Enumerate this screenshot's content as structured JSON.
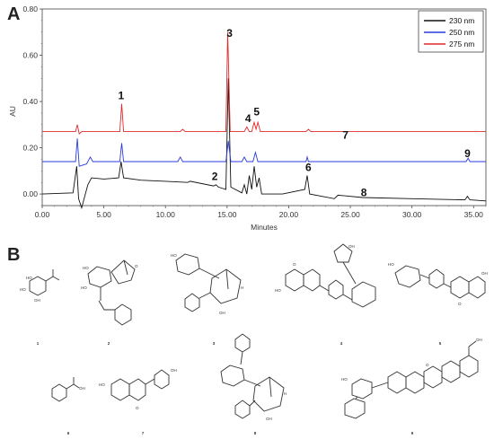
{
  "figure": {
    "panel_a": "A",
    "panel_b": "B"
  },
  "chart_data": {
    "type": "line",
    "xlabel": "Minutes",
    "ylabel": "AU",
    "xlim": [
      0,
      36
    ],
    "ylim": [
      -0.05,
      0.8
    ],
    "xticks": [
      "0.00",
      "5.00",
      "10.00",
      "15.00",
      "20.00",
      "25.00",
      "30.00",
      "35.00"
    ],
    "yticks": [
      "0.00",
      "0.20",
      "0.40",
      "0.60",
      "0.80"
    ],
    "legend_position": "top-right",
    "series": [
      {
        "name": "230 nm",
        "color": "#111111",
        "baseline": 0.0,
        "points": [
          [
            0,
            0.0
          ],
          [
            2.5,
            0.005
          ],
          [
            2.8,
            0.12
          ],
          [
            2.95,
            -0.02
          ],
          [
            3.2,
            -0.06
          ],
          [
            3.7,
            0.04
          ],
          [
            4.0,
            0.07
          ],
          [
            5.0,
            0.065
          ],
          [
            6.2,
            0.07
          ],
          [
            6.4,
            0.14
          ],
          [
            6.6,
            0.07
          ],
          [
            8.0,
            0.06
          ],
          [
            10.0,
            0.055
          ],
          [
            11.8,
            0.05
          ],
          [
            12.0,
            0.055
          ],
          [
            13.9,
            0.035
          ],
          [
            14.1,
            0.04
          ],
          [
            14.3,
            0.03
          ],
          [
            14.9,
            0.02
          ],
          [
            15.1,
            0.5
          ],
          [
            15.3,
            0.03
          ],
          [
            16.2,
            0.005
          ],
          [
            16.4,
            0.04
          ],
          [
            16.6,
            0.0
          ],
          [
            16.8,
            0.08
          ],
          [
            17.0,
            0.02
          ],
          [
            17.2,
            0.12
          ],
          [
            17.4,
            0.03
          ],
          [
            17.6,
            0.07
          ],
          [
            17.8,
            0.0
          ],
          [
            19.5,
            0.0
          ],
          [
            21.3,
            0.02
          ],
          [
            21.5,
            0.08
          ],
          [
            21.7,
            0.0
          ],
          [
            23.7,
            -0.02
          ],
          [
            24.0,
            -0.005
          ],
          [
            26.0,
            -0.015
          ],
          [
            30.0,
            -0.02
          ],
          [
            34.3,
            -0.025
          ],
          [
            34.5,
            -0.01
          ],
          [
            34.7,
            -0.025
          ],
          [
            36.0,
            -0.03
          ]
        ]
      },
      {
        "name": "250 nm",
        "color": "#2a3be0",
        "baseline": 0.14,
        "points": [
          [
            0,
            0.14
          ],
          [
            2.7,
            0.14
          ],
          [
            2.85,
            0.24
          ],
          [
            3.0,
            0.12
          ],
          [
            3.6,
            0.13
          ],
          [
            3.9,
            0.16
          ],
          [
            4.1,
            0.14
          ],
          [
            6.3,
            0.14
          ],
          [
            6.45,
            0.22
          ],
          [
            6.6,
            0.14
          ],
          [
            11.0,
            0.14
          ],
          [
            11.2,
            0.16
          ],
          [
            11.4,
            0.14
          ],
          [
            14.9,
            0.14
          ],
          [
            15.1,
            0.23
          ],
          [
            15.3,
            0.14
          ],
          [
            16.2,
            0.14
          ],
          [
            16.4,
            0.16
          ],
          [
            16.6,
            0.14
          ],
          [
            17.1,
            0.14
          ],
          [
            17.3,
            0.18
          ],
          [
            17.5,
            0.14
          ],
          [
            21.4,
            0.14
          ],
          [
            21.5,
            0.16
          ],
          [
            21.6,
            0.14
          ],
          [
            34.4,
            0.14
          ],
          [
            34.55,
            0.155
          ],
          [
            34.7,
            0.14
          ],
          [
            36.0,
            0.14
          ]
        ]
      },
      {
        "name": "275 nm",
        "color": "#e02a2a",
        "baseline": 0.27,
        "points": [
          [
            0,
            0.27
          ],
          [
            2.7,
            0.27
          ],
          [
            2.85,
            0.3
          ],
          [
            3.0,
            0.26
          ],
          [
            3.2,
            0.27
          ],
          [
            6.3,
            0.27
          ],
          [
            6.45,
            0.39
          ],
          [
            6.6,
            0.27
          ],
          [
            11.2,
            0.27
          ],
          [
            11.4,
            0.28
          ],
          [
            11.6,
            0.27
          ],
          [
            14.9,
            0.27
          ],
          [
            15.05,
            0.7
          ],
          [
            15.25,
            0.27
          ],
          [
            16.4,
            0.27
          ],
          [
            16.6,
            0.29
          ],
          [
            16.8,
            0.27
          ],
          [
            17.0,
            0.27
          ],
          [
            17.2,
            0.31
          ],
          [
            17.35,
            0.28
          ],
          [
            17.5,
            0.31
          ],
          [
            17.7,
            0.27
          ],
          [
            21.4,
            0.27
          ],
          [
            21.6,
            0.28
          ],
          [
            21.8,
            0.27
          ],
          [
            36.0,
            0.27
          ]
        ]
      }
    ],
    "peaks": [
      {
        "label": "1",
        "x": 6.4,
        "y": 0.41
      },
      {
        "label": "2",
        "x": 14.0,
        "y": 0.06
      },
      {
        "label": "3",
        "x": 15.2,
        "y": 0.68
      },
      {
        "label": "4",
        "x": 16.7,
        "y": 0.31
      },
      {
        "label": "5",
        "x": 17.4,
        "y": 0.34
      },
      {
        "label": "6",
        "x": 21.6,
        "y": 0.1
      },
      {
        "label": "7",
        "x": 24.6,
        "y": 0.24
      },
      {
        "label": "8",
        "x": 26.1,
        "y": -0.01
      },
      {
        "label": "9",
        "x": 34.5,
        "y": 0.16
      }
    ]
  },
  "compounds": {
    "labels": [
      "1",
      "2",
      "3",
      "4",
      "5",
      "6",
      "7",
      "8",
      "9"
    ]
  },
  "structure_text": {
    "oh": "OH",
    "ho": "HO",
    "o": "O",
    "h": "H",
    "ohh": "OH",
    "cooh": "OH"
  }
}
